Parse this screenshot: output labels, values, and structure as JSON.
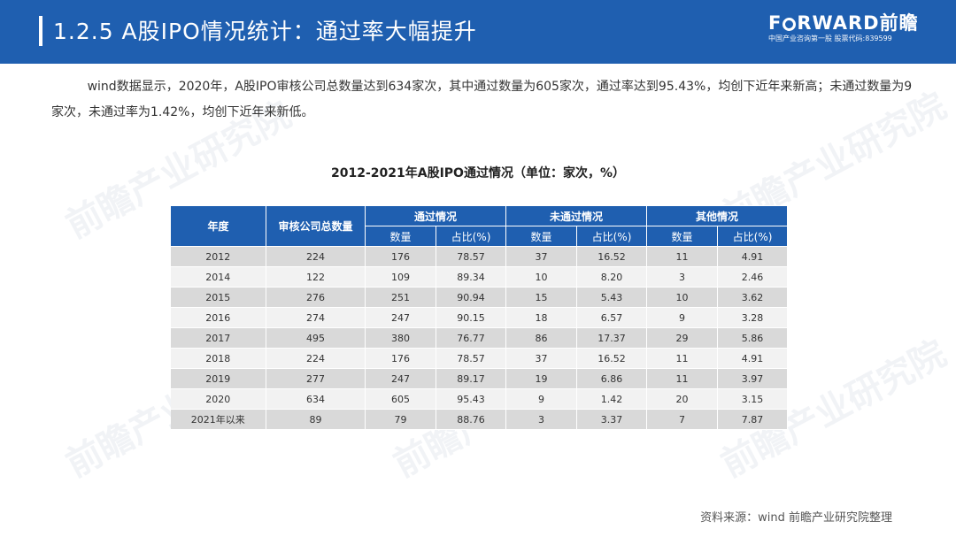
{
  "header": {
    "title": "1.2.5 A股IPO情况统计：通过率大幅提升",
    "brand_left": "F",
    "brand_right": "RWARD前瞻",
    "tagline": "中国产业咨询第一股  股票代码:839599"
  },
  "paragraph": "wind数据显示，2020年，A股IPO审核公司总数量达到634家次，其中通过数量为605家次，通过率达到95.43%，均创下近年来新高；未通过数量为9家次，未通过率为1.42%，均创下近年来新低。",
  "table": {
    "title": "2012-2021年A股IPO通过情况（单位：家次，%）",
    "headers": {
      "year": "年度",
      "total": "审核公司总数量",
      "passed": "通过情况",
      "failed": "未通过情况",
      "other": "其他情况",
      "count": "数量",
      "ratio": "占比(%)"
    },
    "rows": [
      [
        "2012",
        "224",
        "176",
        "78.57",
        "37",
        "16.52",
        "11",
        "4.91"
      ],
      [
        "2014",
        "122",
        "109",
        "89.34",
        "10",
        "8.20",
        "3",
        "2.46"
      ],
      [
        "2015",
        "276",
        "251",
        "90.94",
        "15",
        "5.43",
        "10",
        "3.62"
      ],
      [
        "2016",
        "274",
        "247",
        "90.15",
        "18",
        "6.57",
        "9",
        "3.28"
      ],
      [
        "2017",
        "495",
        "380",
        "76.77",
        "86",
        "17.37",
        "29",
        "5.86"
      ],
      [
        "2018",
        "224",
        "176",
        "78.57",
        "37",
        "16.52",
        "11",
        "4.91"
      ],
      [
        "2019",
        "277",
        "247",
        "89.17",
        "19",
        "6.86",
        "11",
        "3.97"
      ],
      [
        "2020",
        "634",
        "605",
        "95.43",
        "9",
        "1.42",
        "20",
        "3.15"
      ],
      [
        "2021年以来",
        "89",
        "79",
        "88.76",
        "3",
        "3.37",
        "7",
        "7.87"
      ]
    ]
  },
  "source": "资料来源：wind 前瞻产业研究院整理",
  "watermark": "前瞻产业研究院",
  "colors": {
    "header_bg": "#1f5fb0",
    "row_dark": "#d9d9d9",
    "row_light": "#f2f2f2"
  }
}
